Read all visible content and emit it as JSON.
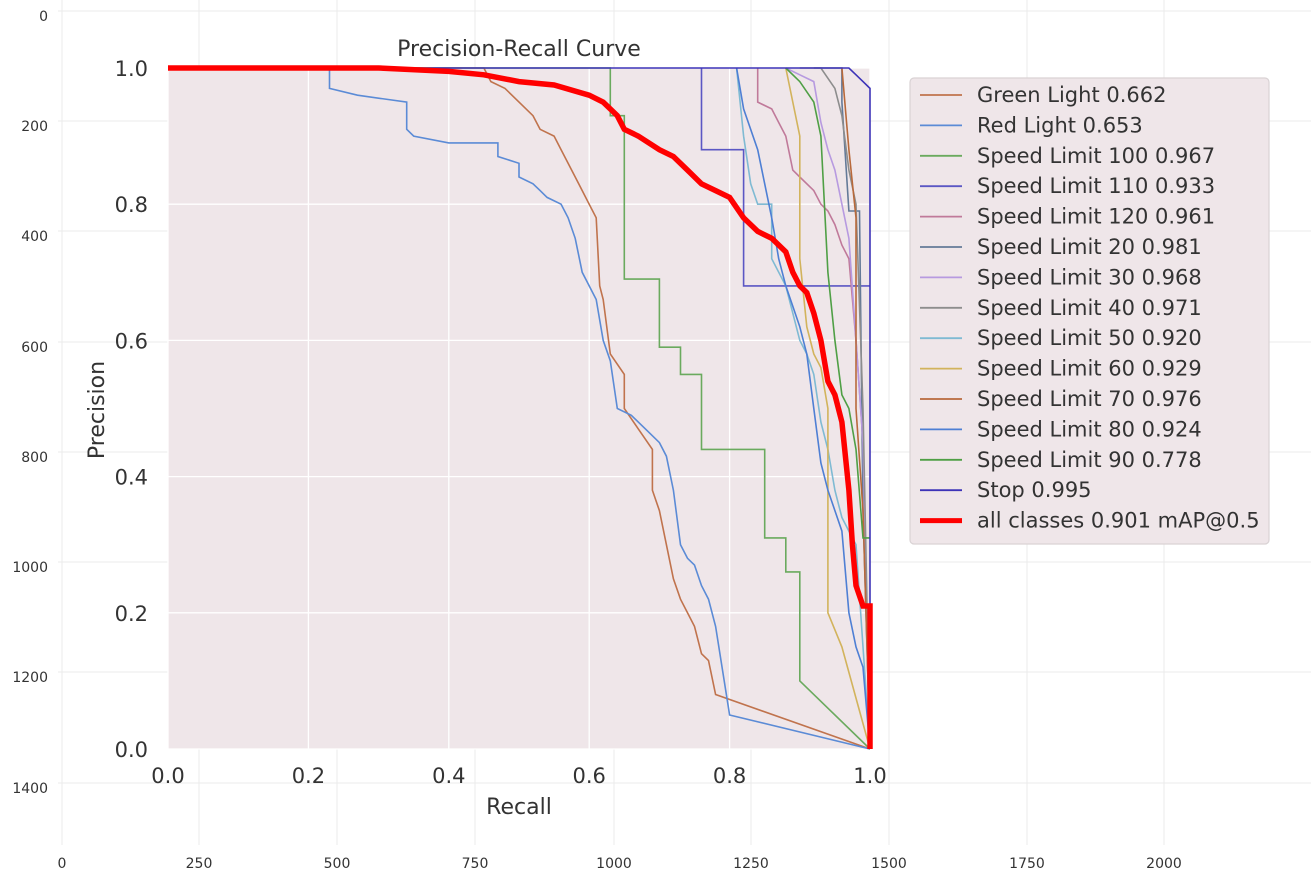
{
  "chart_data": {
    "type": "line",
    "title": "Precision-Recall Curve",
    "xlabel": "Recall",
    "ylabel": "Precision",
    "xlim": [
      0,
      1
    ],
    "ylim": [
      0,
      1
    ],
    "x_ticks": [
      "0.0",
      "0.2",
      "0.4",
      "0.6",
      "0.8",
      "1.0"
    ],
    "y_ticks": [
      "0.0",
      "0.2",
      "0.4",
      "0.6",
      "0.8",
      "1.0"
    ],
    "grid": true,
    "legend_position": "outside-right",
    "background_axes": {
      "x_ticks": [
        "0",
        "250",
        "500",
        "750",
        "1000",
        "1250",
        "1500",
        "1750",
        "2000"
      ],
      "y_ticks": [
        "0",
        "200",
        "400",
        "600",
        "800",
        "1000",
        "1200",
        "1400"
      ]
    },
    "series": [
      {
        "name": "Green Light 0.662",
        "color": "#c0734d",
        "width": 1.6,
        "points": [
          [
            0,
            1
          ],
          [
            0.45,
            1
          ],
          [
            0.46,
            0.98
          ],
          [
            0.48,
            0.97
          ],
          [
            0.5,
            0.95
          ],
          [
            0.52,
            0.93
          ],
          [
            0.53,
            0.91
          ],
          [
            0.55,
            0.9
          ],
          [
            0.56,
            0.88
          ],
          [
            0.57,
            0.86
          ],
          [
            0.585,
            0.83
          ],
          [
            0.6,
            0.8
          ],
          [
            0.61,
            0.78
          ],
          [
            0.615,
            0.68
          ],
          [
            0.62,
            0.66
          ],
          [
            0.63,
            0.58
          ],
          [
            0.65,
            0.55
          ],
          [
            0.65,
            0.5
          ],
          [
            0.67,
            0.47
          ],
          [
            0.69,
            0.44
          ],
          [
            0.69,
            0.38
          ],
          [
            0.7,
            0.35
          ],
          [
            0.71,
            0.3
          ],
          [
            0.72,
            0.25
          ],
          [
            0.73,
            0.22
          ],
          [
            0.74,
            0.2
          ],
          [
            0.75,
            0.18
          ],
          [
            0.76,
            0.14
          ],
          [
            0.77,
            0.13
          ],
          [
            0.78,
            0.08
          ],
          [
            1,
            0
          ]
        ]
      },
      {
        "name": "Red Light 0.653",
        "color": "#5b8bd6",
        "width": 1.6,
        "points": [
          [
            0,
            1
          ],
          [
            0.23,
            1
          ],
          [
            0.23,
            0.97
          ],
          [
            0.27,
            0.96
          ],
          [
            0.34,
            0.95
          ],
          [
            0.34,
            0.91
          ],
          [
            0.35,
            0.9
          ],
          [
            0.4,
            0.89
          ],
          [
            0.47,
            0.89
          ],
          [
            0.47,
            0.87
          ],
          [
            0.5,
            0.86
          ],
          [
            0.5,
            0.84
          ],
          [
            0.52,
            0.83
          ],
          [
            0.53,
            0.82
          ],
          [
            0.54,
            0.81
          ],
          [
            0.56,
            0.8
          ],
          [
            0.57,
            0.78
          ],
          [
            0.58,
            0.75
          ],
          [
            0.59,
            0.7
          ],
          [
            0.6,
            0.68
          ],
          [
            0.61,
            0.66
          ],
          [
            0.615,
            0.63
          ],
          [
            0.62,
            0.6
          ],
          [
            0.63,
            0.57
          ],
          [
            0.64,
            0.5
          ],
          [
            0.66,
            0.49
          ],
          [
            0.68,
            0.47
          ],
          [
            0.7,
            0.45
          ],
          [
            0.71,
            0.43
          ],
          [
            0.72,
            0.38
          ],
          [
            0.73,
            0.3
          ],
          [
            0.74,
            0.28
          ],
          [
            0.75,
            0.27
          ],
          [
            0.76,
            0.24
          ],
          [
            0.77,
            0.22
          ],
          [
            0.78,
            0.18
          ],
          [
            0.8,
            0.05
          ],
          [
            1,
            0
          ]
        ]
      },
      {
        "name": "Speed Limit 100 0.967",
        "color": "#6aaa5e",
        "width": 1.6,
        "points": [
          [
            0,
            1
          ],
          [
            0.63,
            1
          ],
          [
            0.63,
            0.93
          ],
          [
            0.65,
            0.93
          ],
          [
            0.65,
            0.69
          ],
          [
            0.7,
            0.69
          ],
          [
            0.7,
            0.59
          ],
          [
            0.73,
            0.59
          ],
          [
            0.73,
            0.55
          ],
          [
            0.76,
            0.55
          ],
          [
            0.76,
            0.44
          ],
          [
            0.82,
            0.44
          ],
          [
            0.85,
            0.44
          ],
          [
            0.85,
            0.31
          ],
          [
            0.88,
            0.31
          ],
          [
            0.88,
            0.26
          ],
          [
            0.9,
            0.26
          ],
          [
            0.9,
            0.1
          ],
          [
            1,
            0
          ]
        ]
      },
      {
        "name": "Speed Limit 110 0.933",
        "color": "#5b57c4",
        "width": 1.6,
        "points": [
          [
            0.76,
            1
          ],
          [
            0.76,
            0.88
          ],
          [
            0.82,
            0.88
          ],
          [
            0.82,
            0.68
          ],
          [
            1,
            0.68
          ]
        ]
      },
      {
        "name": "Speed Limit 120 0.961",
        "color": "#c07a9a",
        "width": 1.6,
        "points": [
          [
            0.84,
            1
          ],
          [
            0.84,
            0.95
          ],
          [
            0.86,
            0.94
          ],
          [
            0.87,
            0.92
          ],
          [
            0.88,
            0.9
          ],
          [
            0.89,
            0.85
          ],
          [
            0.9,
            0.84
          ],
          [
            0.92,
            0.82
          ],
          [
            0.93,
            0.8
          ],
          [
            0.94,
            0.79
          ],
          [
            0.95,
            0.77
          ],
          [
            0.96,
            0.74
          ],
          [
            0.97,
            0.72
          ],
          [
            0.98,
            0.6
          ],
          [
            0.99,
            0.45
          ],
          [
            1,
            0
          ]
        ]
      },
      {
        "name": "Speed Limit 20 0.981",
        "color": "#647a98",
        "width": 1.6,
        "points": [
          [
            0.92,
            1
          ],
          [
            0.96,
            1
          ],
          [
            0.96,
            0.95
          ],
          [
            0.97,
            0.79
          ],
          [
            0.985,
            0.79
          ],
          [
            0.99,
            0.35
          ],
          [
            1,
            0
          ]
        ]
      },
      {
        "name": "Speed Limit 30 0.968",
        "color": "#b79ae0",
        "width": 1.6,
        "points": [
          [
            0.88,
            1
          ],
          [
            0.9,
            0.99
          ],
          [
            0.92,
            0.98
          ],
          [
            0.93,
            0.92
          ],
          [
            0.94,
            0.88
          ],
          [
            0.95,
            0.85
          ],
          [
            0.96,
            0.8
          ],
          [
            0.97,
            0.75
          ],
          [
            0.98,
            0.6
          ],
          [
            0.99,
            0.45
          ],
          [
            1,
            0
          ]
        ]
      },
      {
        "name": "Speed Limit 40 0.971",
        "color": "#8d8d8d",
        "width": 1.6,
        "points": [
          [
            0.9,
            1
          ],
          [
            0.93,
            1
          ],
          [
            0.95,
            0.97
          ],
          [
            0.96,
            0.93
          ],
          [
            0.97,
            0.85
          ],
          [
            0.98,
            0.8
          ],
          [
            0.99,
            0.5
          ],
          [
            1,
            0
          ]
        ]
      },
      {
        "name": "Speed Limit 50 0.920",
        "color": "#7fbad3",
        "width": 1.6,
        "points": [
          [
            0.81,
            1
          ],
          [
            0.82,
            0.9
          ],
          [
            0.83,
            0.83
          ],
          [
            0.84,
            0.8
          ],
          [
            0.86,
            0.8
          ],
          [
            0.86,
            0.72
          ],
          [
            0.88,
            0.68
          ],
          [
            0.89,
            0.64
          ],
          [
            0.9,
            0.6
          ],
          [
            0.91,
            0.58
          ],
          [
            0.92,
            0.55
          ],
          [
            0.93,
            0.48
          ],
          [
            0.94,
            0.44
          ],
          [
            0.95,
            0.38
          ],
          [
            0.96,
            0.34
          ],
          [
            0.97,
            0.32
          ],
          [
            0.98,
            0.3
          ],
          [
            1,
            0
          ]
        ]
      },
      {
        "name": "Speed Limit 60 0.929",
        "color": "#d2b35c",
        "width": 1.6,
        "points": [
          [
            0.88,
            1
          ],
          [
            0.89,
            0.95
          ],
          [
            0.9,
            0.9
          ],
          [
            0.9,
            0.72
          ],
          [
            0.91,
            0.62
          ],
          [
            0.92,
            0.58
          ],
          [
            0.93,
            0.56
          ],
          [
            0.94,
            0.5
          ],
          [
            0.94,
            0.2
          ],
          [
            0.96,
            0.15
          ],
          [
            1,
            0
          ]
        ]
      },
      {
        "name": "Speed Limit 70 0.976",
        "color": "#b8693b",
        "width": 1.6,
        "points": [
          [
            0.96,
            1
          ],
          [
            0.97,
            0.88
          ],
          [
            0.98,
            0.78
          ],
          [
            0.98,
            0.5
          ],
          [
            0.99,
            0.35
          ],
          [
            1,
            0
          ]
        ]
      },
      {
        "name": "Speed Limit 80 0.924",
        "color": "#4e7fd4",
        "width": 1.6,
        "points": [
          [
            0.81,
            1
          ],
          [
            0.82,
            0.94
          ],
          [
            0.84,
            0.88
          ],
          [
            0.85,
            0.83
          ],
          [
            0.86,
            0.78
          ],
          [
            0.87,
            0.72
          ],
          [
            0.88,
            0.68
          ],
          [
            0.89,
            0.65
          ],
          [
            0.9,
            0.62
          ],
          [
            0.91,
            0.58
          ],
          [
            0.92,
            0.5
          ],
          [
            0.93,
            0.42
          ],
          [
            0.94,
            0.38
          ],
          [
            0.95,
            0.35
          ],
          [
            0.96,
            0.32
          ],
          [
            0.97,
            0.2
          ],
          [
            0.98,
            0.15
          ],
          [
            0.99,
            0.12
          ],
          [
            1,
            0
          ]
        ]
      },
      {
        "name": "Speed Limit 90 0.778",
        "color": "#4f9f45",
        "width": 1.6,
        "points": [
          [
            0.88,
            1
          ],
          [
            0.9,
            0.98
          ],
          [
            0.92,
            0.95
          ],
          [
            0.93,
            0.9
          ],
          [
            0.94,
            0.7
          ],
          [
            0.95,
            0.6
          ],
          [
            0.96,
            0.52
          ],
          [
            0.97,
            0.5
          ],
          [
            0.98,
            0.44
          ],
          [
            0.99,
            0.31
          ],
          [
            1,
            0.31
          ]
        ]
      },
      {
        "name": "Stop 0.995",
        "color": "#3d33b8",
        "width": 1.6,
        "points": [
          [
            0,
            1
          ],
          [
            0.97,
            1
          ],
          [
            0.98,
            0.99
          ],
          [
            0.99,
            0.98
          ],
          [
            1,
            0.97
          ],
          [
            1,
            0
          ]
        ]
      },
      {
        "name": "all classes 0.901 mAP@0.5",
        "color": "#ff0000",
        "width": 5.5,
        "points": [
          [
            0,
            1
          ],
          [
            0.3,
            1
          ],
          [
            0.4,
            0.995
          ],
          [
            0.45,
            0.99
          ],
          [
            0.5,
            0.98
          ],
          [
            0.55,
            0.975
          ],
          [
            0.6,
            0.96
          ],
          [
            0.62,
            0.95
          ],
          [
            0.64,
            0.93
          ],
          [
            0.65,
            0.91
          ],
          [
            0.67,
            0.9
          ],
          [
            0.7,
            0.88
          ],
          [
            0.72,
            0.87
          ],
          [
            0.74,
            0.85
          ],
          [
            0.76,
            0.83
          ],
          [
            0.78,
            0.82
          ],
          [
            0.8,
            0.81
          ],
          [
            0.82,
            0.78
          ],
          [
            0.84,
            0.76
          ],
          [
            0.86,
            0.75
          ],
          [
            0.88,
            0.73
          ],
          [
            0.89,
            0.7
          ],
          [
            0.9,
            0.68
          ],
          [
            0.91,
            0.67
          ],
          [
            0.92,
            0.64
          ],
          [
            0.93,
            0.6
          ],
          [
            0.94,
            0.54
          ],
          [
            0.95,
            0.52
          ],
          [
            0.96,
            0.48
          ],
          [
            0.97,
            0.38
          ],
          [
            0.975,
            0.3
          ],
          [
            0.98,
            0.24
          ],
          [
            0.99,
            0.21
          ],
          [
            1,
            0.21
          ],
          [
            1,
            0
          ]
        ]
      }
    ]
  }
}
